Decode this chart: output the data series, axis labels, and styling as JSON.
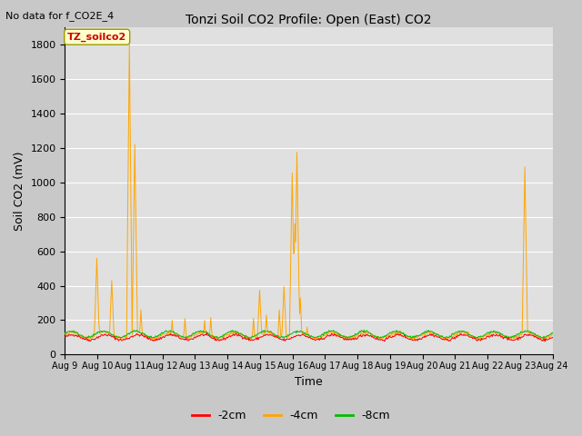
{
  "title": "Tonzi Soil CO2 Profile: Open (East) CO2",
  "subtitle": "No data for f_CO2E_4",
  "ylabel": "Soil CO2 (mV)",
  "xlabel": "Time",
  "legend_label": "TZ_soilco2",
  "series_labels": [
    "-2cm",
    "-4cm",
    "-8cm"
  ],
  "series_colors": [
    "#ff0000",
    "#ffa500",
    "#00bb00"
  ],
  "ylim": [
    0,
    1900
  ],
  "yticks": [
    0,
    200,
    400,
    600,
    800,
    1000,
    1200,
    1400,
    1600,
    1800
  ],
  "bg_color": "#e0e0e0",
  "fig_color": "#c8c8c8",
  "n_points": 720,
  "seed": 42
}
